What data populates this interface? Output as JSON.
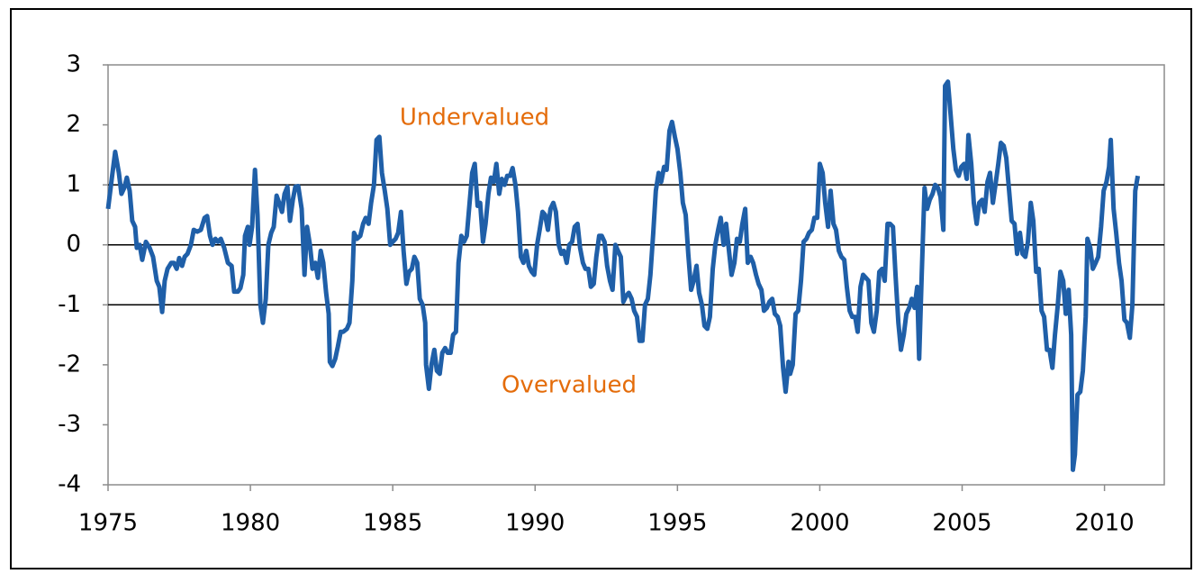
{
  "chart_data": {
    "type": "line",
    "annotations": [
      {
        "text": "Undervalued",
        "color": "#e46c0a"
      },
      {
        "text": "Overvalued",
        "color": "#e46c0a"
      }
    ],
    "xlim": [
      1975,
      2012.1
    ],
    "xticks": [
      1975,
      1980,
      1985,
      1990,
      1995,
      2000,
      2005,
      2010
    ],
    "ylim": [
      -4,
      3
    ],
    "yticks": [
      -4,
      -3,
      -2,
      -1,
      0,
      1,
      2,
      3
    ],
    "grid_lines": [
      -1,
      0,
      1
    ],
    "x": [
      1975.0,
      1975.13,
      1975.25,
      1975.38,
      1975.47,
      1975.57,
      1975.66,
      1975.76,
      1975.85,
      1975.95,
      1976.01,
      1976.11,
      1976.2,
      1976.33,
      1976.46,
      1976.58,
      1976.71,
      1976.8,
      1976.9,
      1976.99,
      1977.09,
      1977.22,
      1977.31,
      1977.41,
      1977.5,
      1977.6,
      1977.69,
      1977.79,
      1977.91,
      1978.01,
      1978.13,
      1978.26,
      1978.39,
      1978.48,
      1978.58,
      1978.67,
      1978.77,
      1978.86,
      1978.96,
      1979.08,
      1979.21,
      1979.34,
      1979.43,
      1979.56,
      1979.65,
      1979.75,
      1979.81,
      1979.91,
      1979.97,
      1980.06,
      1980.16,
      1980.25,
      1980.35,
      1980.44,
      1980.54,
      1980.63,
      1980.73,
      1980.82,
      1980.92,
      1981.01,
      1981.11,
      1981.2,
      1981.3,
      1981.39,
      1981.49,
      1981.58,
      1981.68,
      1981.8,
      1981.9,
      1981.99,
      1982.09,
      1982.18,
      1982.28,
      1982.37,
      1982.47,
      1982.56,
      1982.66,
      1982.75,
      1982.79,
      1982.88,
      1982.98,
      1983.07,
      1983.17,
      1983.26,
      1983.39,
      1983.48,
      1983.58,
      1983.64,
      1983.74,
      1983.86,
      1983.96,
      1984.05,
      1984.15,
      1984.24,
      1984.34,
      1984.43,
      1984.53,
      1984.62,
      1984.72,
      1984.81,
      1984.91,
      1985.0,
      1985.1,
      1985.19,
      1985.29,
      1985.38,
      1985.48,
      1985.57,
      1985.67,
      1985.76,
      1985.86,
      1985.95,
      1986.05,
      1986.14,
      1986.17,
      1986.27,
      1986.36,
      1986.46,
      1986.55,
      1986.65,
      1986.74,
      1986.84,
      1986.93,
      1987.03,
      1987.12,
      1987.22,
      1987.31,
      1987.41,
      1987.5,
      1987.6,
      1987.69,
      1987.79,
      1987.88,
      1987.98,
      1988.07,
      1988.17,
      1988.26,
      1988.36,
      1988.45,
      1988.55,
      1988.64,
      1988.74,
      1988.83,
      1988.93,
      1989.02,
      1989.12,
      1989.21,
      1989.31,
      1989.4,
      1989.5,
      1989.59,
      1989.69,
      1989.78,
      1989.88,
      1989.97,
      1990.07,
      1990.16,
      1990.26,
      1990.35,
      1990.45,
      1990.54,
      1990.64,
      1990.73,
      1990.83,
      1990.92,
      1991.01,
      1991.11,
      1991.2,
      1991.3,
      1991.39,
      1991.49,
      1991.58,
      1991.68,
      1991.77,
      1991.87,
      1991.96,
      1992.06,
      1992.15,
      1992.25,
      1992.34,
      1992.44,
      1992.53,
      1992.63,
      1992.72,
      1992.82,
      1992.91,
      1993.01,
      1993.1,
      1993.2,
      1993.29,
      1993.39,
      1993.48,
      1993.58,
      1993.67,
      1993.77,
      1993.86,
      1993.96,
      1994.05,
      1994.15,
      1994.24,
      1994.34,
      1994.43,
      1994.53,
      1994.62,
      1994.72,
      1994.81,
      1994.91,
      1995.0,
      1995.1,
      1995.19,
      1995.29,
      1995.38,
      1995.48,
      1995.57,
      1995.67,
      1995.76,
      1995.86,
      1995.95,
      1996.05,
      1996.14,
      1996.24,
      1996.33,
      1996.43,
      1996.52,
      1996.62,
      1996.71,
      1996.81,
      1996.9,
      1997.0,
      1997.09,
      1997.19,
      1997.28,
      1997.38,
      1997.47,
      1997.57,
      1997.66,
      1997.76,
      1997.85,
      1997.95,
      1998.04,
      1998.14,
      1998.23,
      1998.33,
      1998.42,
      1998.52,
      1998.61,
      1998.71,
      1998.8,
      1998.9,
      1998.96,
      1999.05,
      1999.15,
      1999.24,
      1999.34,
      1999.43,
      1999.53,
      1999.62,
      1999.72,
      1999.81,
      1999.91,
      2000.0,
      2000.1,
      2000.19,
      2000.29,
      2000.38,
      2000.48,
      2000.57,
      2000.67,
      2000.76,
      2000.86,
      2000.95,
      2001.05,
      2001.14,
      2001.24,
      2001.33,
      2001.43,
      2001.52,
      2001.62,
      2001.71,
      2001.81,
      2001.9,
      2002.0,
      2002.09,
      2002.19,
      2002.28,
      2002.38,
      2002.47,
      2002.57,
      2002.66,
      2002.76,
      2002.85,
      2002.95,
      2003.04,
      2003.14,
      2003.23,
      2003.33,
      2003.42,
      2003.49,
      2003.58,
      2003.68,
      2003.77,
      2003.86,
      2003.96,
      2004.05,
      2004.15,
      2004.24,
      2004.34,
      2004.4,
      2004.5,
      2004.59,
      2004.69,
      2004.78,
      2004.88,
      2004.97,
      2005.07,
      2005.16,
      2005.22,
      2005.32,
      2005.41,
      2005.51,
      2005.6,
      2005.7,
      2005.79,
      2005.89,
      2005.98,
      2006.08,
      2006.17,
      2006.27,
      2006.36,
      2006.46,
      2006.55,
      2006.65,
      2006.74,
      2006.84,
      2006.93,
      2007.03,
      2007.12,
      2007.22,
      2007.31,
      2007.41,
      2007.5,
      2007.6,
      2007.69,
      2007.79,
      2007.88,
      2007.98,
      2008.07,
      2008.17,
      2008.26,
      2008.36,
      2008.45,
      2008.55,
      2008.64,
      2008.74,
      2008.83,
      2008.89,
      2008.96,
      2009.05,
      2009.15,
      2009.24,
      2009.34,
      2009.4,
      2009.5,
      2009.59,
      2009.69,
      2009.78,
      2009.88,
      2009.97,
      2010.07,
      2010.16,
      2010.22,
      2010.32,
      2010.41,
      2010.51,
      2010.6,
      2010.7,
      2010.79,
      2010.89,
      2010.98,
      2011.08,
      2011.17
    ],
    "series": [
      {
        "color": "#1f5fa8",
        "values": [
          0.6,
          1.1,
          1.55,
          1.2,
          0.85,
          0.95,
          1.12,
          0.9,
          0.4,
          0.3,
          -0.05,
          0.0,
          -0.25,
          0.05,
          -0.05,
          -0.2,
          -0.6,
          -0.7,
          -1.12,
          -0.6,
          -0.4,
          -0.3,
          -0.3,
          -0.4,
          -0.22,
          -0.35,
          -0.2,
          -0.15,
          0.0,
          0.25,
          0.22,
          0.25,
          0.45,
          0.48,
          0.15,
          0.0,
          0.1,
          0.05,
          0.1,
          -0.05,
          -0.3,
          -0.35,
          -0.78,
          -0.78,
          -0.72,
          -0.5,
          0.15,
          0.3,
          0.0,
          0.3,
          1.25,
          0.5,
          -1.0,
          -1.3,
          -0.9,
          0.0,
          0.2,
          0.3,
          0.82,
          0.7,
          0.55,
          0.85,
          0.97,
          0.4,
          0.75,
          0.97,
          0.98,
          0.6,
          -0.5,
          0.3,
          0.0,
          -0.4,
          -0.3,
          -0.55,
          -0.1,
          -0.3,
          -0.8,
          -1.15,
          -1.95,
          -2.02,
          -1.9,
          -1.7,
          -1.45,
          -1.45,
          -1.4,
          -1.3,
          -0.6,
          0.2,
          0.1,
          0.15,
          0.35,
          0.45,
          0.35,
          0.7,
          1.0,
          1.75,
          1.8,
          1.2,
          0.9,
          0.6,
          0.0,
          0.05,
          0.1,
          0.2,
          0.55,
          -0.1,
          -0.65,
          -0.45,
          -0.4,
          -0.2,
          -0.3,
          -0.9,
          -1.0,
          -1.3,
          -2.0,
          -2.4,
          -2.0,
          -1.75,
          -2.1,
          -2.15,
          -1.8,
          -1.72,
          -1.8,
          -1.8,
          -1.5,
          -1.45,
          -0.3,
          0.15,
          0.05,
          0.15,
          0.65,
          1.2,
          1.35,
          0.65,
          0.7,
          0.05,
          0.35,
          0.85,
          1.12,
          1.05,
          1.35,
          0.85,
          1.1,
          1.0,
          1.15,
          1.15,
          1.28,
          1.0,
          0.55,
          -0.2,
          -0.3,
          -0.1,
          -0.35,
          -0.45,
          -0.5,
          0.0,
          0.25,
          0.55,
          0.5,
          0.25,
          0.6,
          0.7,
          0.55,
          0.0,
          -0.15,
          -0.1,
          -0.3,
          0.0,
          0.05,
          0.3,
          0.35,
          -0.05,
          -0.3,
          -0.4,
          -0.4,
          -0.7,
          -0.65,
          -0.2,
          0.15,
          0.15,
          0.05,
          -0.35,
          -0.6,
          -0.75,
          0.0,
          -0.1,
          -0.2,
          -0.95,
          -0.85,
          -0.8,
          -0.9,
          -1.1,
          -1.2,
          -1.6,
          -1.6,
          -1.0,
          -0.9,
          -0.5,
          0.2,
          0.9,
          1.2,
          1.05,
          1.3,
          1.25,
          1.9,
          2.05,
          1.8,
          1.6,
          1.2,
          0.7,
          0.5,
          -0.15,
          -0.75,
          -0.6,
          -0.35,
          -0.8,
          -1.0,
          -1.35,
          -1.4,
          -1.2,
          -0.4,
          0.0,
          0.25,
          0.45,
          0.0,
          0.35,
          -0.1,
          -0.5,
          -0.3,
          0.1,
          0.05,
          0.35,
          0.6,
          -0.3,
          -0.2,
          -0.3,
          -0.5,
          -0.65,
          -0.75,
          -1.1,
          -1.05,
          -0.95,
          -0.9,
          -1.15,
          -1.2,
          -1.35,
          -2.05,
          -2.45,
          -1.95,
          -2.15,
          -2.0,
          -1.15,
          -1.1,
          -0.6,
          0.05,
          0.1,
          0.2,
          0.25,
          0.45,
          0.45,
          1.35,
          1.2,
          0.7,
          0.3,
          0.9,
          0.35,
          0.25,
          -0.1,
          -0.2,
          -0.25,
          -0.7,
          -1.1,
          -1.2,
          -1.2,
          -1.45,
          -0.7,
          -0.5,
          -0.55,
          -0.6,
          -1.3,
          -1.45,
          -1.1,
          -0.45,
          -0.4,
          -0.6,
          0.35,
          0.35,
          0.3,
          -0.5,
          -1.3,
          -1.75,
          -1.5,
          -1.15,
          -1.05,
          -0.9,
          -1.05,
          -0.7,
          -1.9,
          -0.5,
          0.95,
          0.6,
          0.75,
          0.85,
          1.0,
          0.95,
          0.8,
          0.25,
          2.65,
          2.72,
          2.2,
          1.6,
          1.25,
          1.15,
          1.3,
          1.35,
          1.1,
          1.83,
          1.35,
          0.7,
          0.35,
          0.7,
          0.75,
          0.55,
          1.05,
          1.2,
          0.7,
          1.0,
          1.35,
          1.7,
          1.65,
          1.45,
          0.9,
          0.4,
          0.35,
          -0.15,
          0.2,
          -0.15,
          -0.2,
          0.05,
          0.7,
          0.4,
          -0.45,
          -0.4,
          -1.1,
          -1.2,
          -1.75,
          -1.75,
          -2.05,
          -1.5,
          -1.0,
          -0.45,
          -0.6,
          -1.15,
          -0.75,
          -1.5,
          -3.75,
          -3.5,
          -2.5,
          -2.45,
          -2.1,
          -1.2,
          0.1,
          -0.05,
          -0.4,
          -0.3,
          -0.2,
          0.3,
          0.9,
          1.05,
          1.3,
          1.75,
          0.6,
          0.2,
          -0.3,
          -0.6,
          -1.25,
          -1.3,
          -1.55,
          -1.0,
          0.9,
          1.15
        ]
      }
    ]
  }
}
